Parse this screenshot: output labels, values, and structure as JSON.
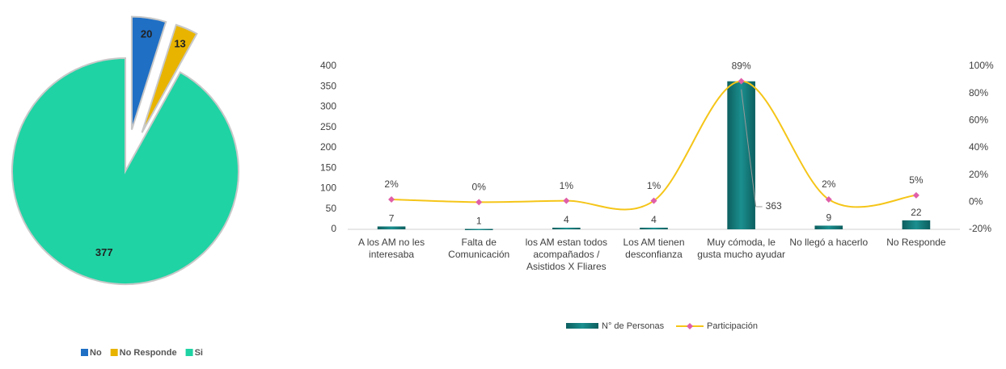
{
  "chart_data": [
    {
      "type": "pie",
      "categories": [
        "No",
        "No Responde",
        "Si"
      ],
      "values": [
        20,
        13,
        377
      ],
      "colors": [
        "#1f6fc4",
        "#e8b400",
        "#1fd3a4"
      ],
      "exploded": [
        true,
        true,
        false
      ],
      "legend": "bottom-left"
    },
    {
      "type": "bar-line",
      "categories": [
        "A los AM no les interesaba",
        "Falta de Comunicación",
        "los AM estan todos acompañados / Asistidos X Fliares",
        "Los AM tienen desconfianza",
        "Muy cómoda, le gusta mucho ayudar",
        "No llegó a hacerlo",
        "No Responde"
      ],
      "series": [
        {
          "name": "N° de Personas",
          "color": "#1b8f8f",
          "values": [
            7,
            1,
            4,
            4,
            363,
            9,
            22
          ]
        },
        {
          "name": "Participación",
          "color": "#f5c518",
          "marker_color": "#e05fa8",
          "axis": "y2",
          "values": [
            2,
            0,
            1,
            1,
            89,
            2,
            5
          ],
          "value_labels": [
            "2%",
            "0%",
            "1%",
            "1%",
            "89%",
            "2%",
            "5%"
          ]
        }
      ],
      "ylim": [
        0,
        400
      ],
      "yticks": [
        0,
        50,
        100,
        150,
        200,
        250,
        300,
        350,
        400
      ],
      "y2lim": [
        -20,
        100
      ],
      "y2ticks": [
        {
          "value": -20,
          "label": "-20%"
        },
        {
          "value": 0,
          "label": "0%"
        },
        {
          "value": 20,
          "label": "20%"
        },
        {
          "value": 40,
          "label": "40%"
        },
        {
          "value": 60,
          "label": "60%"
        },
        {
          "value": 80,
          "label": "80%"
        },
        {
          "value": 100,
          "label": "100%"
        }
      ],
      "grid": false,
      "legend": "bottom"
    }
  ]
}
